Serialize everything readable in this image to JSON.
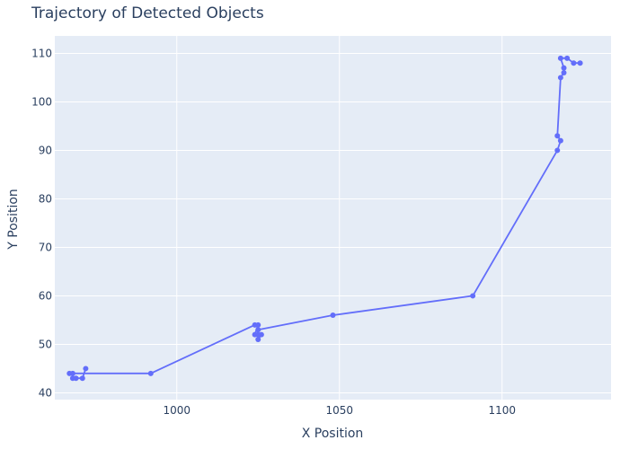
{
  "chart_data": {
    "type": "line",
    "title": "Trajectory of Detected Objects",
    "xlabel": "X Position",
    "ylabel": "Y Position",
    "xlim": [
      962.5,
      1133.5
    ],
    "ylim": [
      38.6,
      113.6
    ],
    "xticks": [
      1000,
      1050,
      1100
    ],
    "yticks": [
      40,
      50,
      60,
      70,
      80,
      90,
      100,
      110
    ],
    "grid": true,
    "legend": "none",
    "series": [
      {
        "color": "#636efa",
        "mode": "lines+markers",
        "x": [
          972,
          971,
          969,
          968,
          968,
          967,
          992,
          1024,
          1025,
          1024,
          1026,
          1025,
          1025,
          1025,
          1048,
          1091,
          1117,
          1118,
          1117,
          1118,
          1119,
          1119,
          1118,
          1120,
          1122,
          1124
        ],
        "y": [
          45,
          43,
          43,
          43,
          44,
          44,
          44,
          54,
          54,
          52,
          52,
          51,
          52,
          53,
          56,
          60,
          90,
          92,
          93,
          105,
          106,
          107,
          109,
          109,
          108,
          108
        ]
      }
    ]
  }
}
